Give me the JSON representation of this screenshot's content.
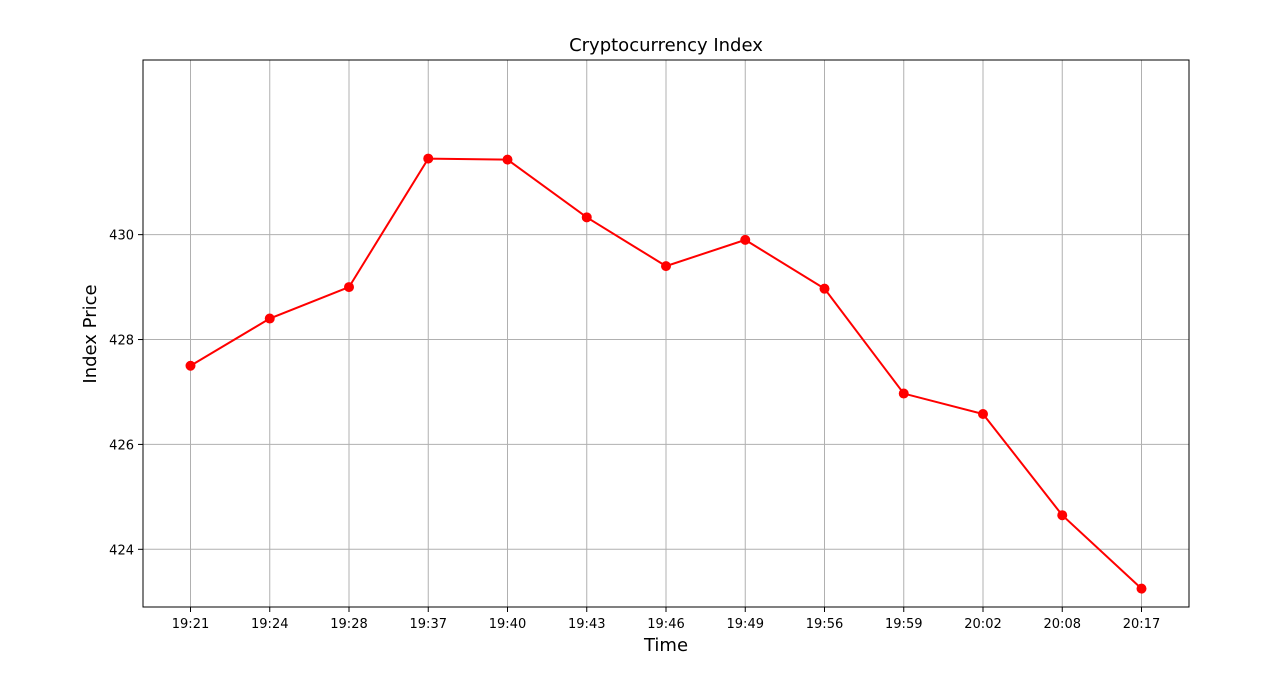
{
  "chart_data": {
    "type": "line",
    "title": "Cryptocurrency Index",
    "xlabel": "Time",
    "ylabel": "Index Price",
    "categories": [
      "19:21",
      "19:24",
      "19:28",
      "19:37",
      "19:40",
      "19:43",
      "19:46",
      "19:49",
      "19:56",
      "19:59",
      "20:02",
      "20:08",
      "20:17"
    ],
    "series": [
      {
        "values": [
          427.5,
          428.4,
          429.0,
          431.45,
          431.43,
          430.33,
          429.4,
          429.9,
          428.97,
          426.97,
          426.58,
          424.65,
          423.25
        ]
      }
    ],
    "yticks": [
      424,
      426,
      428,
      430
    ],
    "ylim": [
      422.9,
      433.33
    ],
    "grid": true,
    "colors": {
      "line": "#ff0000",
      "marker": "#ff0000",
      "grid": "#b0b0b0",
      "axes": "#000000"
    }
  }
}
